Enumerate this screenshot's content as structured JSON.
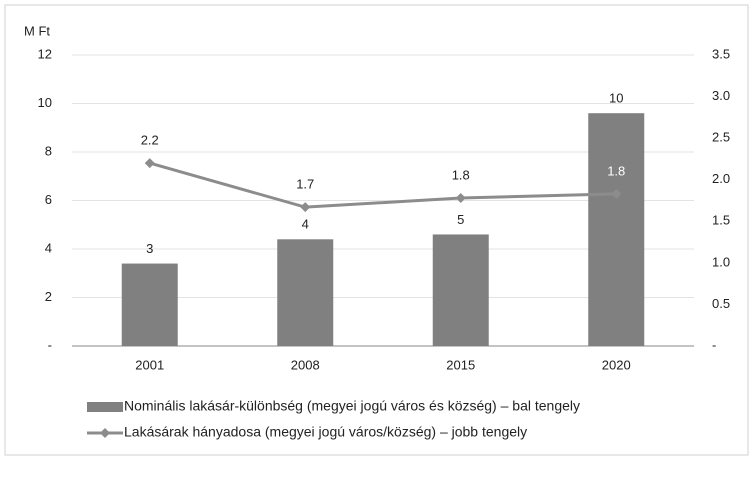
{
  "chart_data": {
    "type": "bar-line",
    "y_label": "M Ft",
    "categories": [
      "2001",
      "2008",
      "2015",
      "2020"
    ],
    "series": [
      {
        "name": "Nominális lakásár-különbség (megyei jogú város és község) – bal tengely",
        "type": "bar",
        "color": "#808080",
        "values": [
          3.4,
          4.4,
          4.6,
          9.6
        ],
        "value_labels": [
          "3",
          "4",
          "5",
          "10"
        ]
      },
      {
        "name": "Lakásárak hányadosa (megyei jogú város/község) – jobb tengely",
        "type": "line",
        "axis": "y2",
        "color": "#8c8c8c",
        "values": [
          2.2,
          1.67,
          1.78,
          1.83
        ],
        "value_labels": [
          "2.2",
          "1.7",
          "1.8",
          "1.8"
        ]
      }
    ],
    "ylim": [
      0,
      12
    ],
    "yticks": [
      {
        "value": 0,
        "label": "-"
      },
      2,
      4,
      6,
      8,
      10,
      12
    ],
    "y2lim": [
      0,
      3.5
    ],
    "y2ticks": [
      {
        "value": 0,
        "label": "-"
      },
      0.5,
      {
        "value": 1,
        "label": "1.0"
      },
      1.5,
      {
        "value": 2,
        "label": "2.0"
      },
      2.5,
      {
        "value": 3,
        "label": "3.0"
      },
      3.5
    ],
    "grid": true
  }
}
